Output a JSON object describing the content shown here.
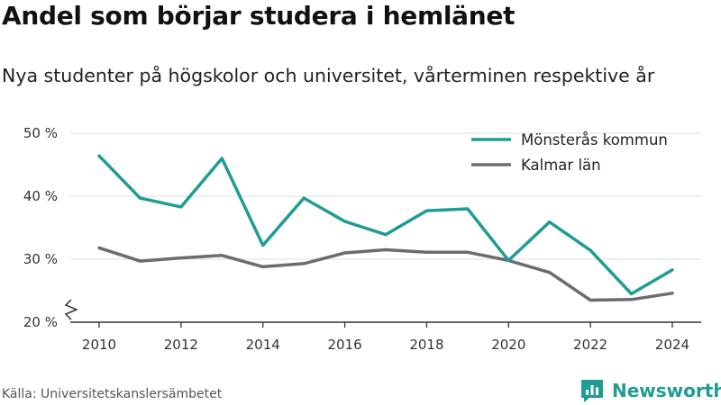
{
  "title": "Andel som börjar studera i hemlänet",
  "subtitle": "Nya studenter på högskolor och universitet, vårterminen respektive år",
  "source": "Källa: Universitetskanslersämbetet",
  "brand": "Newsworthy",
  "chart_data": {
    "type": "line",
    "x": [
      2010,
      2011,
      2012,
      2013,
      2014,
      2015,
      2016,
      2017,
      2018,
      2019,
      2020,
      2021,
      2022,
      2023,
      2024
    ],
    "xticks": [
      "2010",
      "2012",
      "2014",
      "2016",
      "2018",
      "2020",
      "2022",
      "2024"
    ],
    "yticks": [
      "20 %",
      "30 %",
      "40 %",
      "50 %"
    ],
    "ylim": [
      20,
      50
    ],
    "grid": true,
    "axis_break": true,
    "legend_position": "top-right",
    "series": [
      {
        "name": "Mönsterås kommun",
        "color": "#1f9c94",
        "values": [
          46.4,
          39.7,
          38.3,
          46.0,
          32.2,
          39.7,
          36.0,
          33.9,
          37.7,
          38.0,
          29.8,
          35.9,
          31.4,
          24.5,
          28.3
        ]
      },
      {
        "name": "Kalmar län",
        "color": "#6d6b70",
        "values": [
          31.8,
          29.7,
          30.2,
          30.6,
          28.8,
          29.3,
          31.0,
          31.5,
          31.1,
          31.1,
          29.8,
          27.9,
          23.5,
          23.6,
          24.6
        ]
      }
    ]
  }
}
